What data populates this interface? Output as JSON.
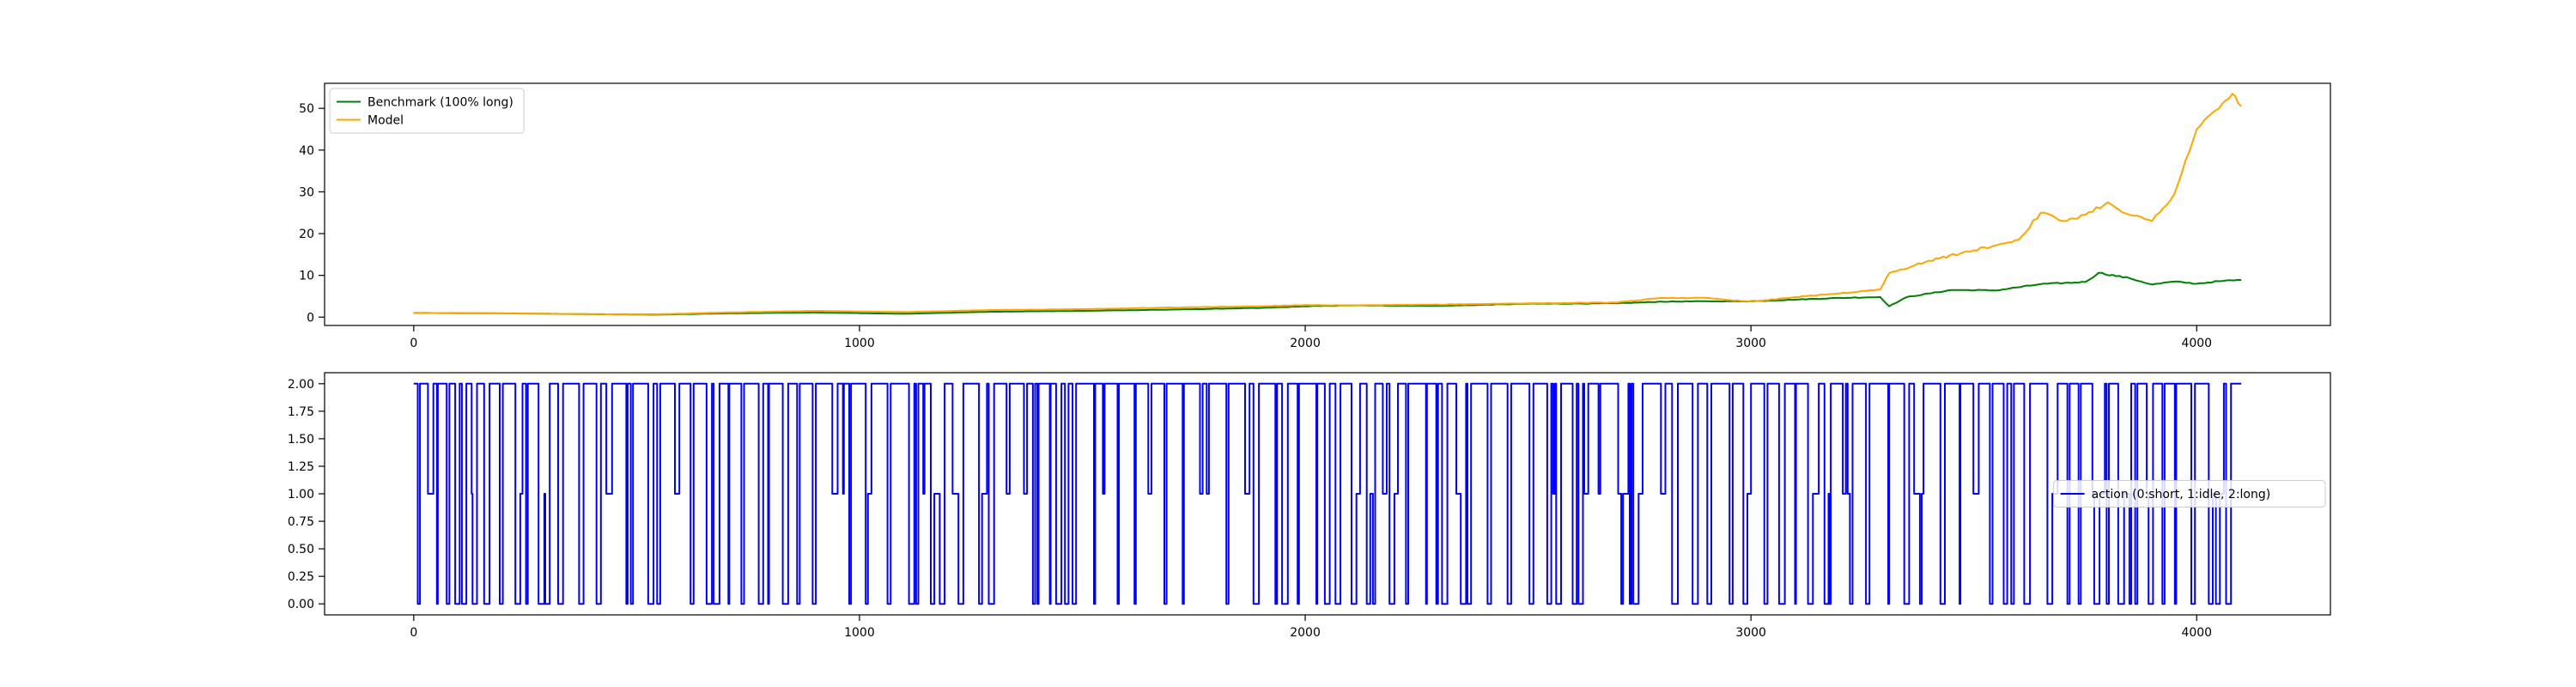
{
  "chart_data": [
    {
      "type": "line",
      "title": "",
      "xlabel": "",
      "ylabel": "",
      "xlim": [
        -200,
        4300
      ],
      "ylim": [
        -2,
        56
      ],
      "xticks": [
        0,
        1000,
        2000,
        3000,
        4000
      ],
      "yticks": [
        0,
        10,
        20,
        30,
        40,
        50
      ],
      "xtick_labels": [
        "0",
        "1000",
        "2000",
        "3000",
        "4000"
      ],
      "ytick_labels": [
        "0",
        "10",
        "20",
        "30",
        "40",
        "50"
      ],
      "grid": false,
      "legend": {
        "loc": "upper left"
      },
      "series": [
        {
          "name": "Benchmark (100% long)",
          "color": "#008000",
          "points": [
            [
              0,
              1.0
            ],
            [
              200,
              0.9
            ],
            [
              400,
              0.7
            ],
            [
              550,
              0.6
            ],
            [
              700,
              0.9
            ],
            [
              900,
              1.1
            ],
            [
              1100,
              0.8
            ],
            [
              1300,
              1.3
            ],
            [
              1500,
              1.5
            ],
            [
              1700,
              1.8
            ],
            [
              1900,
              2.2
            ],
            [
              2000,
              2.6
            ],
            [
              2100,
              2.8
            ],
            [
              2300,
              2.7
            ],
            [
              2500,
              3.2
            ],
            [
              2700,
              3.3
            ],
            [
              2800,
              3.7
            ],
            [
              2900,
              3.8
            ],
            [
              3000,
              3.8
            ],
            [
              3100,
              4.2
            ],
            [
              3200,
              4.6
            ],
            [
              3290,
              4.8
            ],
            [
              3310,
              2.6
            ],
            [
              3350,
              4.8
            ],
            [
              3450,
              6.5
            ],
            [
              3550,
              6.4
            ],
            [
              3650,
              7.9
            ],
            [
              3750,
              8.4
            ],
            [
              3780,
              10.6
            ],
            [
              3850,
              9.3
            ],
            [
              3900,
              7.8
            ],
            [
              3950,
              8.5
            ],
            [
              4000,
              8.0
            ],
            [
              4050,
              8.6
            ],
            [
              4100,
              8.9
            ]
          ]
        },
        {
          "name": "Model",
          "color": "#ffa500",
          "points": [
            [
              0,
              1.0
            ],
            [
              200,
              0.9
            ],
            [
              400,
              0.7
            ],
            [
              550,
              0.7
            ],
            [
              700,
              1.1
            ],
            [
              900,
              1.5
            ],
            [
              1100,
              1.2
            ],
            [
              1300,
              1.7
            ],
            [
              1500,
              1.9
            ],
            [
              1700,
              2.3
            ],
            [
              1900,
              2.6
            ],
            [
              2000,
              2.9
            ],
            [
              2100,
              2.8
            ],
            [
              2300,
              3.0
            ],
            [
              2500,
              3.3
            ],
            [
              2700,
              3.5
            ],
            [
              2800,
              4.6
            ],
            [
              2900,
              4.6
            ],
            [
              3000,
              3.7
            ],
            [
              3100,
              4.8
            ],
            [
              3200,
              5.7
            ],
            [
              3290,
              6.6
            ],
            [
              3310,
              10.5
            ],
            [
              3400,
              13.5
            ],
            [
              3500,
              16.0
            ],
            [
              3600,
              18.5
            ],
            [
              3650,
              25.0
            ],
            [
              3700,
              23.0
            ],
            [
              3750,
              24.5
            ],
            [
              3800,
              27.5
            ],
            [
              3850,
              24.5
            ],
            [
              3900,
              23.0
            ],
            [
              3950,
              29.5
            ],
            [
              4000,
              45.0
            ],
            [
              4050,
              50.0
            ],
            [
              4080,
              53.5
            ],
            [
              4100,
              50.5
            ]
          ]
        }
      ]
    },
    {
      "type": "line",
      "title": "",
      "xlabel": "",
      "ylabel": "",
      "xlim": [
        -200,
        4300
      ],
      "ylim": [
        -0.1,
        2.1
      ],
      "xticks": [
        0,
        1000,
        2000,
        3000,
        4000
      ],
      "yticks": [
        0,
        0.25,
        0.5,
        0.75,
        1.0,
        1.25,
        1.5,
        1.75,
        2.0
      ],
      "xtick_labels": [
        "0",
        "1000",
        "2000",
        "3000",
        "4000"
      ],
      "ytick_labels": [
        "0.00",
        "0.25",
        "0.50",
        "0.75",
        "1.00",
        "1.25",
        "1.50",
        "1.75",
        "2.00"
      ],
      "grid": false,
      "legend": {
        "loc": "center right"
      },
      "series": [
        {
          "name": "action (0:short, 1:idle, 2:long)",
          "color": "#0000ff",
          "drawstyle": "steps",
          "x_range": [
            0,
            4100
          ],
          "values": [
            0,
            1,
            2
          ],
          "n_points": 4100
        }
      ]
    }
  ]
}
